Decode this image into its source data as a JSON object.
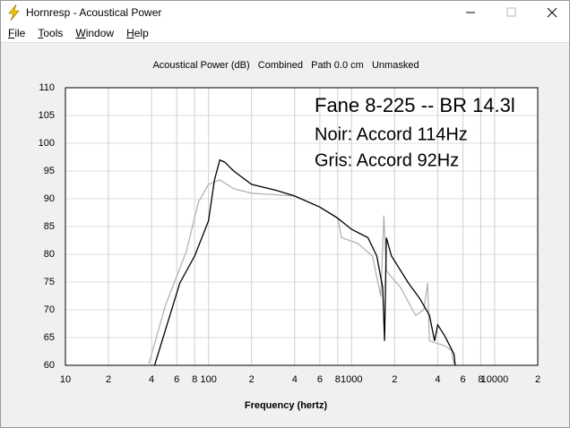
{
  "window": {
    "title": "Hornresp - Acoustical Power"
  },
  "menu": [
    "File",
    "Tools",
    "Window",
    "Help"
  ],
  "chart_data": {
    "type": "line",
    "title": "Acoustical Power (dB)   Combined   Path 0.0 cm   Unmasked",
    "xlabel": "Frequency (hertz)",
    "annotations": [
      "Fane 8-225 -- BR 14.3l",
      "Noir: Accord 114Hz",
      "Gris: Accord 92Hz"
    ],
    "xscale": "log",
    "xlim": [
      10,
      20000
    ],
    "xticks": [
      10,
      {
        "value": 20,
        "label": "2"
      },
      {
        "value": 40,
        "label": "4"
      },
      {
        "value": 60,
        "label": "6"
      },
      {
        "value": 80,
        "label": "8"
      },
      100,
      {
        "value": 200,
        "label": "2"
      },
      {
        "value": 400,
        "label": "4"
      },
      {
        "value": 600,
        "label": "6"
      },
      {
        "value": 800,
        "label": "8"
      },
      1000,
      {
        "value": 2000,
        "label": "2"
      },
      {
        "value": 4000,
        "label": "4"
      },
      {
        "value": 6000,
        "label": "6"
      },
      {
        "value": 8000,
        "label": "8"
      },
      10000,
      {
        "value": 20000,
        "label": "2"
      }
    ],
    "ylim": [
      60,
      110
    ],
    "yticks": [
      60,
      65,
      70,
      75,
      80,
      85,
      90,
      95,
      100,
      105,
      110
    ],
    "grid": true,
    "series": [
      {
        "color": "#b4b4b4",
        "x": [
          38,
          50,
          70,
          85,
          100,
          120,
          150,
          200,
          400,
          600,
          800,
          850,
          1100,
          1400,
          1600,
          1680,
          1750,
          2200,
          2800,
          3200,
          3400,
          3500,
          4500,
          5000,
          5200
        ],
        "values": [
          60,
          70.8,
          80.5,
          89.4,
          92.6,
          93.4,
          91.8,
          91,
          90.5,
          88.5,
          86.6,
          83,
          82,
          79.7,
          72.4,
          87,
          77,
          74,
          69,
          70,
          74.8,
          64.4,
          63.5,
          62.7,
          60
        ]
      },
      {
        "color": "#000000",
        "x": [
          42,
          63,
          80,
          100,
          110,
          120,
          130,
          150,
          200,
          300,
          400,
          600,
          800,
          1000,
          1300,
          1500,
          1650,
          1700,
          1750,
          1900,
          2500,
          3000,
          3500,
          3800,
          4000,
          4500,
          5200,
          5300
        ],
        "values": [
          60,
          74.8,
          79.7,
          86,
          93.4,
          97,
          96.6,
          95,
          92.6,
          91.5,
          90.5,
          88.5,
          86.5,
          84.5,
          83,
          79.7,
          74,
          64.4,
          83,
          79.7,
          74.8,
          72,
          69,
          64.4,
          67.3,
          65.2,
          62,
          60
        ]
      }
    ]
  }
}
